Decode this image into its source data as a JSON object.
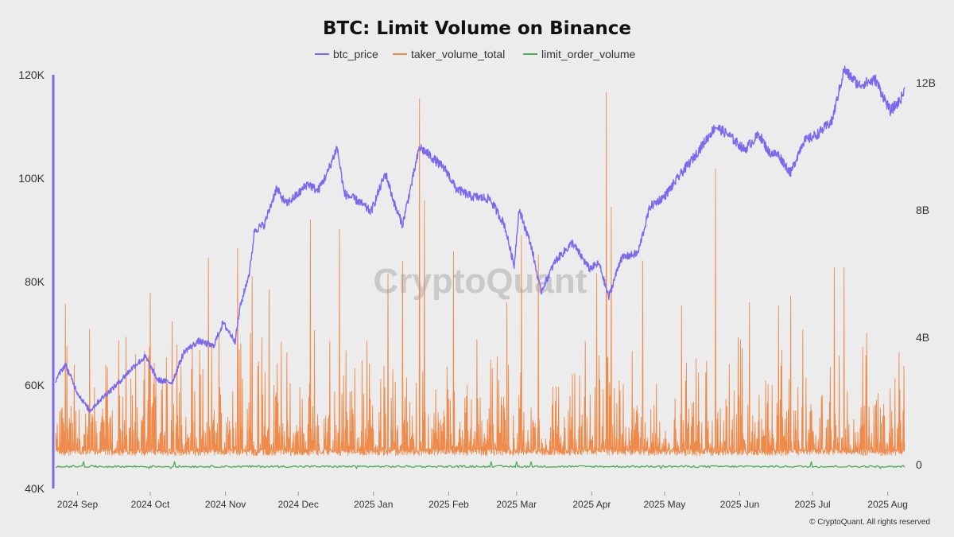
{
  "footer": "© CryptoQuant. All rights reserved",
  "watermark": "CryptoQuant",
  "colors": {
    "background": "#ececec",
    "btc_price": "#7b68ee",
    "taker_volume_total": "#ee8a4a",
    "limit_order_volume": "#4caf50",
    "left_axis": "#7b68ee"
  },
  "chart_data": {
    "type": "line",
    "title": "BTC: Limit Volume on Binance",
    "legend": [
      "btc_price",
      "taker_volume_total",
      "limit_order_volume"
    ],
    "legend_position": "top-center",
    "grid": false,
    "x_ticks": [
      "2024 Sep",
      "2024 Oct",
      "2024 Nov",
      "2024 Dec",
      "2025 Jan",
      "2025 Feb",
      "2025 Mar",
      "2025 Apr",
      "2025 May",
      "2025 Jun",
      "2025 Jul",
      "2025 Aug"
    ],
    "x_range": [
      "2024-08-23",
      "2025-08-08"
    ],
    "y_left": {
      "ticks": [
        "40K",
        "60K",
        "80K",
        "100K",
        "120K"
      ],
      "range": [
        40000,
        124000
      ]
    },
    "y_right": {
      "ticks": [
        "0",
        "4B",
        "8B",
        "12B"
      ],
      "range": [
        0,
        12000000000
      ]
    },
    "series": [
      {
        "name": "btc_price",
        "axis": "left",
        "points": [
          [
            "2024-08-23",
            61000
          ],
          [
            "2024-08-27",
            64000
          ],
          [
            "2024-09-01",
            58500
          ],
          [
            "2024-09-06",
            55000
          ],
          [
            "2024-09-10",
            57000
          ],
          [
            "2024-09-17",
            60000
          ],
          [
            "2024-09-24",
            63500
          ],
          [
            "2024-09-29",
            65500
          ],
          [
            "2024-10-04",
            61000
          ],
          [
            "2024-10-10",
            60500
          ],
          [
            "2024-10-15",
            66500
          ],
          [
            "2024-10-21",
            68500
          ],
          [
            "2024-10-27",
            67500
          ],
          [
            "2024-10-31",
            72000
          ],
          [
            "2024-11-05",
            68500
          ],
          [
            "2024-11-07",
            75000
          ],
          [
            "2024-11-11",
            82000
          ],
          [
            "2024-11-13",
            90000
          ],
          [
            "2024-11-17",
            91000
          ],
          [
            "2024-11-22",
            98000
          ],
          [
            "2024-11-26",
            95000
          ],
          [
            "2024-12-01",
            97000
          ],
          [
            "2024-12-05",
            99000
          ],
          [
            "2024-12-09",
            97500
          ],
          [
            "2024-12-13",
            101000
          ],
          [
            "2024-12-17",
            106000
          ],
          [
            "2024-12-20",
            97000
          ],
          [
            "2024-12-26",
            95500
          ],
          [
            "2024-12-31",
            93500
          ],
          [
            "2025-01-06",
            101000
          ],
          [
            "2025-01-10",
            94500
          ],
          [
            "2025-01-13",
            91000
          ],
          [
            "2025-01-20",
            106000
          ],
          [
            "2025-01-24",
            104500
          ],
          [
            "2025-01-31",
            101500
          ],
          [
            "2025-02-04",
            98000
          ],
          [
            "2025-02-10",
            96500
          ],
          [
            "2025-02-18",
            96000
          ],
          [
            "2025-02-24",
            91000
          ],
          [
            "2025-02-28",
            83000
          ],
          [
            "2025-03-02",
            94000
          ],
          [
            "2025-03-07",
            87000
          ],
          [
            "2025-03-11",
            78000
          ],
          [
            "2025-03-17",
            84000
          ],
          [
            "2025-03-24",
            87500
          ],
          [
            "2025-03-31",
            82500
          ],
          [
            "2025-04-04",
            83500
          ],
          [
            "2025-04-08",
            77000
          ],
          [
            "2025-04-13",
            84500
          ],
          [
            "2025-04-20",
            85500
          ],
          [
            "2025-04-25",
            94500
          ],
          [
            "2025-05-01",
            96500
          ],
          [
            "2025-05-08",
            101000
          ],
          [
            "2025-05-13",
            104000
          ],
          [
            "2025-05-22",
            110000
          ],
          [
            "2025-05-27",
            108500
          ],
          [
            "2025-06-03",
            105500
          ],
          [
            "2025-06-09",
            108500
          ],
          [
            "2025-06-13",
            105000
          ],
          [
            "2025-06-17",
            104500
          ],
          [
            "2025-06-22",
            101000
          ],
          [
            "2025-06-27",
            107000
          ],
          [
            "2025-07-03",
            108500
          ],
          [
            "2025-07-09",
            111000
          ],
          [
            "2025-07-14",
            121000
          ],
          [
            "2025-07-20",
            118000
          ],
          [
            "2025-07-27",
            119000
          ],
          [
            "2025-08-02",
            113000
          ],
          [
            "2025-08-06",
            115000
          ],
          [
            "2025-08-08",
            117000
          ]
        ]
      },
      {
        "name": "taker_volume_total",
        "axis": "right",
        "baseline": 350000000,
        "typical_range": [
          350000000,
          3000000000
        ],
        "peaks": [
          [
            "2024-08-27",
            5050000000
          ],
          [
            "2024-09-06",
            4250000000
          ],
          [
            "2024-09-18",
            3900000000
          ],
          [
            "2024-10-01",
            5400000000
          ],
          [
            "2024-10-10",
            4500000000
          ],
          [
            "2024-10-25",
            6500000000
          ],
          [
            "2024-11-06",
            6800000000
          ],
          [
            "2024-11-12",
            5900000000
          ],
          [
            "2024-11-19",
            5500000000
          ],
          [
            "2024-12-06",
            7700000000
          ],
          [
            "2024-12-18",
            7400000000
          ],
          [
            "2025-01-07",
            6000000000
          ],
          [
            "2025-01-13",
            6400000000
          ],
          [
            "2025-01-20",
            11500000000
          ],
          [
            "2025-01-22",
            8300000000
          ],
          [
            "2025-02-03",
            6700000000
          ],
          [
            "2025-02-25",
            5100000000
          ],
          [
            "2025-03-03",
            7200000000
          ],
          [
            "2025-03-10",
            6600000000
          ],
          [
            "2025-04-03",
            6000000000
          ],
          [
            "2025-04-07",
            11700000000
          ],
          [
            "2025-04-09",
            8100000000
          ],
          [
            "2025-04-22",
            6400000000
          ],
          [
            "2025-05-08",
            5000000000
          ],
          [
            "2025-05-22",
            9300000000
          ],
          [
            "2025-06-05",
            5100000000
          ],
          [
            "2025-06-17",
            5000000000
          ],
          [
            "2025-06-22",
            5300000000
          ],
          [
            "2025-07-10",
            6200000000
          ],
          [
            "2025-07-14",
            6200000000
          ]
        ]
      },
      {
        "name": "limit_order_volume",
        "axis": "right",
        "level": -60000000,
        "range": [
          -120000000,
          100000000
        ]
      }
    ]
  }
}
